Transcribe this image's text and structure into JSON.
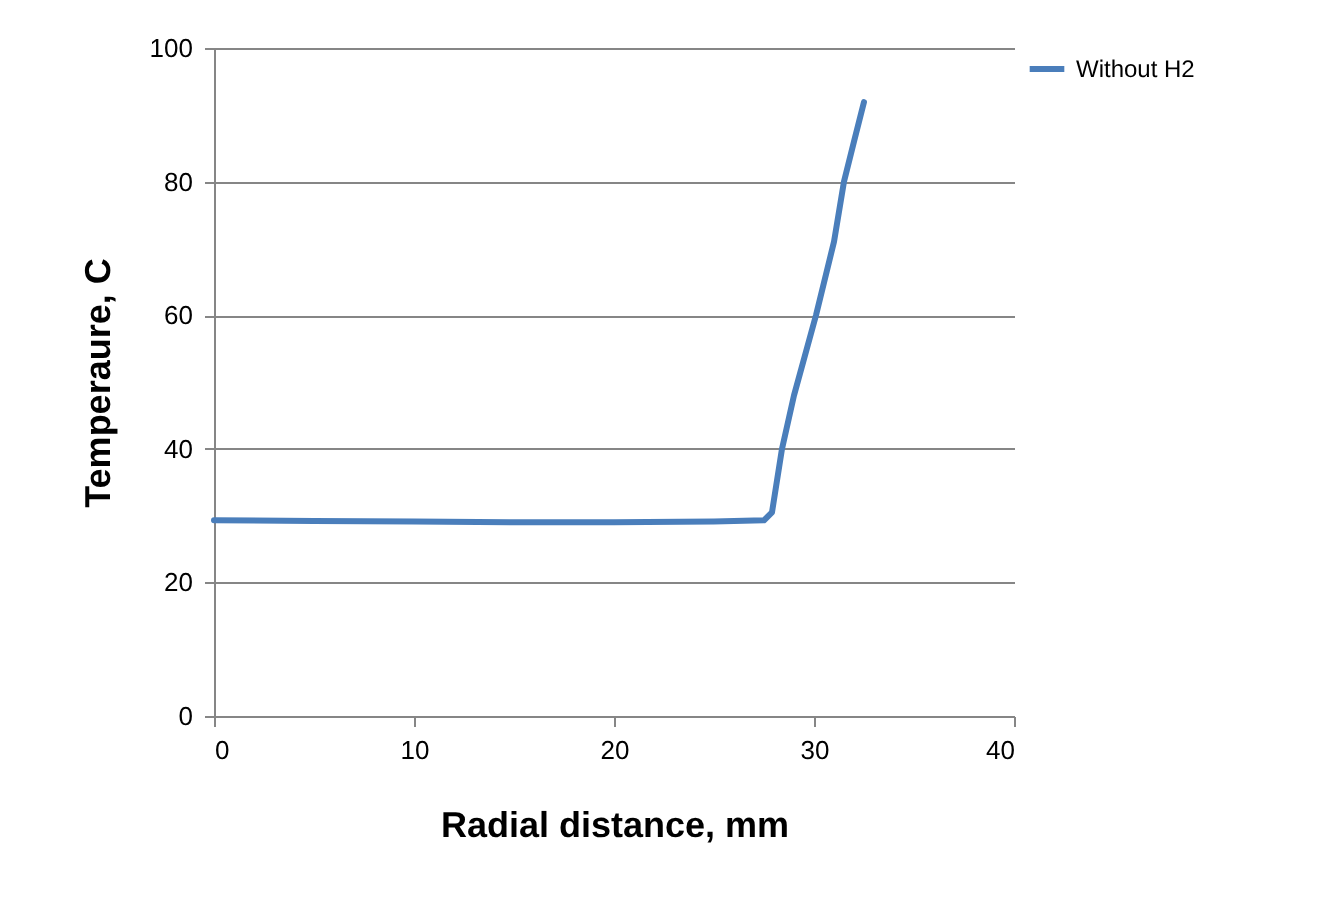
{
  "chart_data": {
    "type": "line",
    "xlabel": "Radial distance, mm",
    "ylabel": "Temperaure, C",
    "x": [
      0,
      5,
      10,
      15,
      20,
      25,
      27.5,
      27.9,
      28.4,
      29,
      30.1,
      31,
      31.5,
      32,
      32.5
    ],
    "series": [
      {
        "name": "Without H2",
        "color": "#4a7ebb",
        "values": [
          29.3,
          29.2,
          29.1,
          29,
          29,
          29.1,
          29.3,
          30.5,
          40,
          48,
          60,
          71,
          80,
          86,
          91.9
        ]
      }
    ],
    "xlim": [
      0,
      40
    ],
    "xticks": [
      0,
      10,
      20,
      30,
      40
    ],
    "ylim": [
      0,
      100
    ],
    "yticks": [
      0,
      20,
      40,
      60,
      80,
      100
    ],
    "grid": "y",
    "legend": "right",
    "marker": "none",
    "line_style": "solid"
  }
}
